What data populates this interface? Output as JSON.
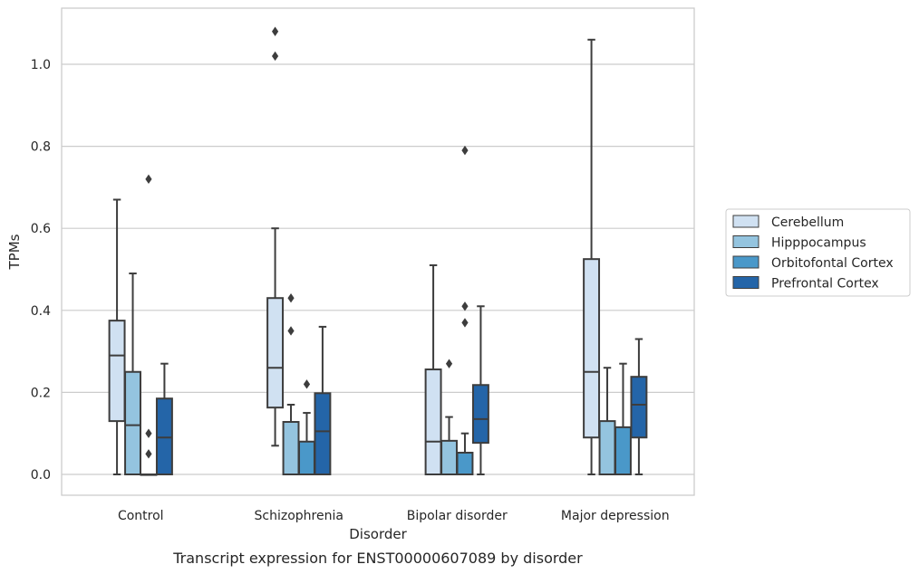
{
  "chart_data": {
    "type": "box",
    "title": "",
    "caption": "Transcript expression for ENST00000607089 by disorder",
    "xlabel": "Disorder",
    "ylabel": "TPMs",
    "ylim": [
      -0.05,
      1.135
    ],
    "yticks": [
      0.0,
      0.2,
      0.4,
      0.6,
      0.8,
      1.0
    ],
    "ytick_labels": [
      "0.0",
      "0.2",
      "0.4",
      "0.6",
      "0.8",
      "1.0"
    ],
    "grid": "horizontal",
    "legend_position": "right, outside plot",
    "categories": [
      "Control",
      "Schizophrenia",
      "Bipolar disorder",
      "Major depression"
    ],
    "series": [
      {
        "name": "Cerebellum",
        "color": "#d0e1f2",
        "boxes": [
          {
            "whisker_low": 0.0,
            "q1": 0.13,
            "median": 0.29,
            "q3": 0.375,
            "whisker_high": 0.67,
            "outliers": []
          },
          {
            "whisker_low": 0.07,
            "q1": 0.163,
            "median": 0.26,
            "q3": 0.43,
            "whisker_high": 0.6,
            "outliers": [
              1.02,
              1.08
            ]
          },
          {
            "whisker_low": 0.0,
            "q1": 0.0,
            "median": 0.08,
            "q3": 0.256,
            "whisker_high": 0.51,
            "outliers": []
          },
          {
            "whisker_low": 0.0,
            "q1": 0.09,
            "median": 0.25,
            "q3": 0.525,
            "whisker_high": 1.06,
            "outliers": []
          }
        ]
      },
      {
        "name": "Hipppocampus",
        "color": "#94c4df",
        "boxes": [
          {
            "whisker_low": 0.0,
            "q1": 0.0,
            "median": 0.12,
            "q3": 0.25,
            "whisker_high": 0.49,
            "outliers": []
          },
          {
            "whisker_low": 0.0,
            "q1": 0.0,
            "median": 0.0,
            "q3": 0.128,
            "whisker_high": 0.17,
            "outliers": [
              0.35,
              0.43
            ]
          },
          {
            "whisker_low": 0.0,
            "q1": 0.0,
            "median": 0.0,
            "q3": 0.082,
            "whisker_high": 0.14,
            "outliers": [
              0.27
            ]
          },
          {
            "whisker_low": 0.0,
            "q1": 0.0,
            "median": 0.0,
            "q3": 0.13,
            "whisker_high": 0.26,
            "outliers": []
          }
        ]
      },
      {
        "name": "Orbitofontal Cortex",
        "color": "#4a98c9",
        "boxes": [
          {
            "whisker_low": 0.0,
            "q1": 0.0,
            "median": 0.0,
            "q3": 0.0,
            "whisker_high": 0.0,
            "outliers": [
              0.05,
              0.1,
              0.72
            ]
          },
          {
            "whisker_low": 0.0,
            "q1": 0.0,
            "median": 0.0,
            "q3": 0.08,
            "whisker_high": 0.15,
            "outliers": [
              0.22
            ]
          },
          {
            "whisker_low": 0.0,
            "q1": 0.0,
            "median": 0.0,
            "q3": 0.053,
            "whisker_high": 0.1,
            "outliers": [
              0.37,
              0.41,
              0.79
            ]
          },
          {
            "whisker_low": 0.0,
            "q1": 0.0,
            "median": 0.0,
            "q3": 0.115,
            "whisker_high": 0.27,
            "outliers": []
          }
        ]
      },
      {
        "name": "Prefrontal Cortex",
        "color": "#2465a8",
        "boxes": [
          {
            "whisker_low": 0.0,
            "q1": 0.0,
            "median": 0.09,
            "q3": 0.185,
            "whisker_high": 0.27,
            "outliers": []
          },
          {
            "whisker_low": 0.0,
            "q1": 0.0,
            "median": 0.105,
            "q3": 0.198,
            "whisker_high": 0.36,
            "outliers": []
          },
          {
            "whisker_low": 0.0,
            "q1": 0.077,
            "median": 0.135,
            "q3": 0.218,
            "whisker_high": 0.41,
            "outliers": []
          },
          {
            "whisker_low": 0.0,
            "q1": 0.09,
            "median": 0.17,
            "q3": 0.238,
            "whisker_high": 0.33,
            "outliers": []
          }
        ]
      }
    ]
  }
}
